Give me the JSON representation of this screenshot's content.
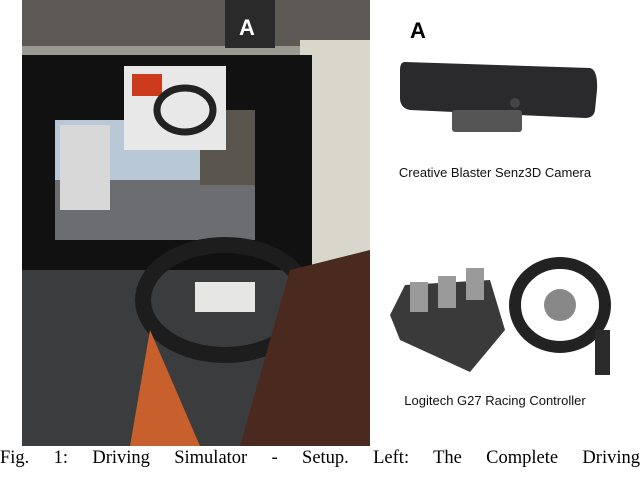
{
  "figure": {
    "left_marker": "A",
    "right_marker": "A",
    "camera_label": "Creative Blaster Senz3D Camera",
    "controller_label": "Logitech G27 Racing Controller",
    "caption": "Fig. 1: Driving Simulator - Setup. Left: The Complete Driving"
  }
}
